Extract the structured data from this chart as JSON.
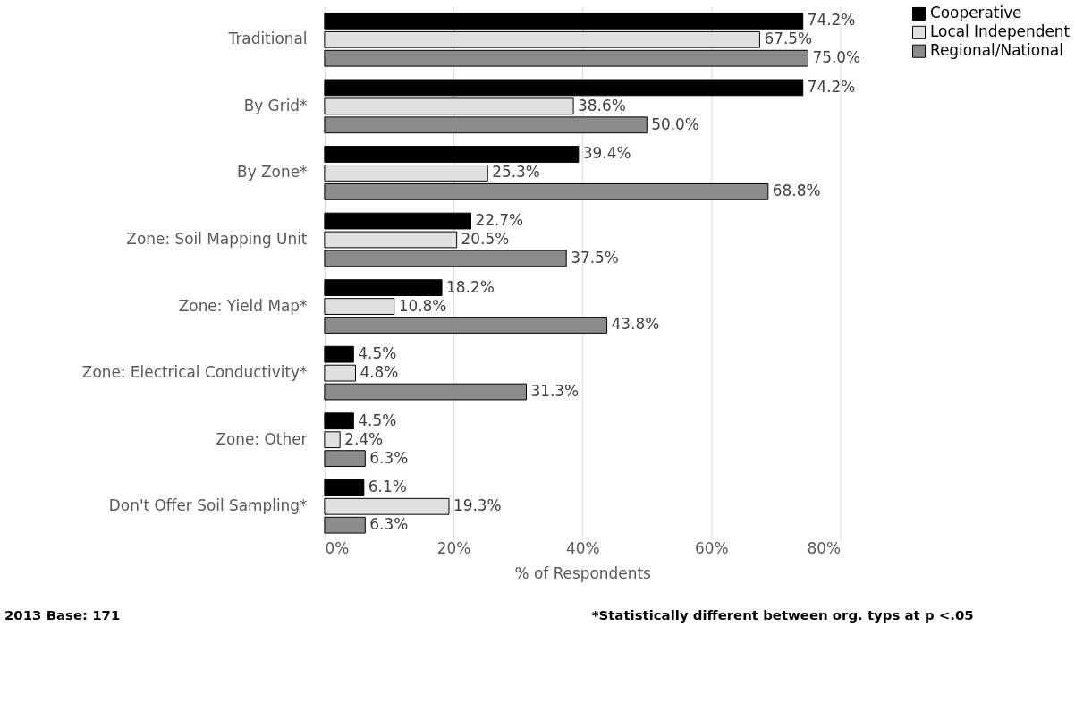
{
  "chart_data": {
    "type": "bar",
    "orientation": "horizontal",
    "categories": [
      "Traditional",
      "By Grid*",
      "By Zone*",
      "Zone: Soil Mapping Unit",
      "Zone: Yield Map*",
      "Zone: Electrical Conductivity*",
      "Zone: Other",
      "Don't Offer Soil Sampling*"
    ],
    "series": [
      {
        "name": "Cooperative",
        "color": "#000000",
        "values": [
          74.2,
          74.2,
          39.4,
          22.7,
          18.2,
          4.5,
          4.5,
          6.1
        ],
        "value_labels": [
          "74.2%",
          "74.2%",
          "39.4%",
          "22.7%",
          "18.2%",
          "4.5%",
          "4.5%",
          "6.1%"
        ]
      },
      {
        "name": "Local Independent",
        "color": "#e0e0e0",
        "values": [
          67.5,
          38.6,
          25.3,
          20.5,
          10.8,
          4.8,
          2.4,
          19.3
        ],
        "value_labels": [
          "67.5%",
          "38.6%",
          "25.3%",
          "20.5%",
          "10.8%",
          "4.8%",
          "2.4%",
          "19.3%"
        ]
      },
      {
        "name": "Regional/National",
        "color": "#8c8c8c",
        "values": [
          75.0,
          50.0,
          68.8,
          37.5,
          43.8,
          31.3,
          6.3,
          6.3
        ],
        "value_labels": [
          "75.0%",
          "50.0%",
          "68.8%",
          "37.5%",
          "43.8%",
          "31.3%",
          "6.3%",
          "6.3%"
        ]
      }
    ],
    "xlabel": "% of Respondents",
    "xlim": [
      0,
      80
    ],
    "xticks": [
      {
        "value": 0,
        "label": "0%"
      },
      {
        "value": 20,
        "label": "20%"
      },
      {
        "value": 40,
        "label": "40%"
      },
      {
        "value": 60,
        "label": "60%"
      },
      {
        "value": 80,
        "label": "80%"
      }
    ],
    "grid": "x",
    "legend": "right",
    "annotations": [
      "2013 Base: 171",
      "*Statistically different between org. typs at p <.05"
    ]
  }
}
